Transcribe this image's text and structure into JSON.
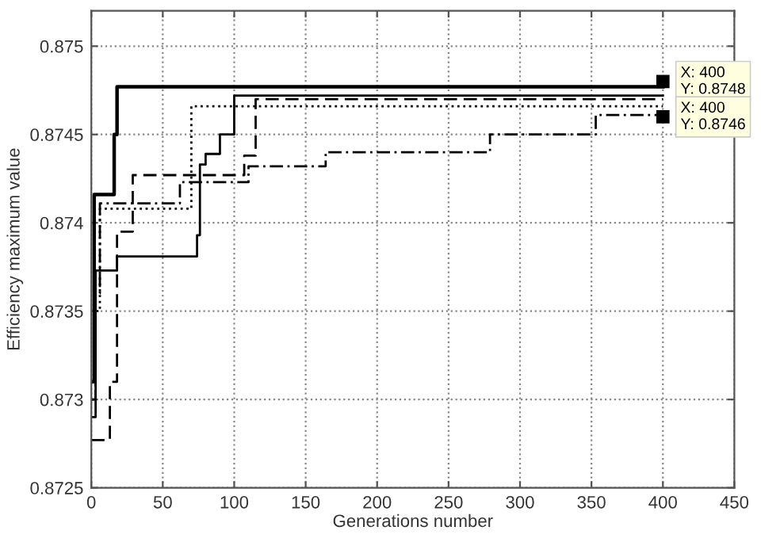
{
  "chart_data": {
    "type": "step",
    "xlabel": "Generations number",
    "ylabel": "Efficiency maximum value",
    "xlim": [
      0,
      450
    ],
    "ylim": [
      0.8725,
      0.8752
    ],
    "xticks": [
      0,
      50,
      100,
      150,
      200,
      250,
      300,
      350,
      400,
      450
    ],
    "yticks": [
      0.8725,
      0.873,
      0.8735,
      0.874,
      0.8745,
      0.875
    ],
    "grid": true,
    "marker": "none",
    "series": [
      {
        "color": "#000000",
        "line_style": "solid",
        "x": [
          0,
          2,
          13,
          16,
          18,
          400
        ],
        "values": [
          0.8731,
          0.87416,
          0.87416,
          0.8745,
          0.87477,
          0.87477
        ]
      },
      {
        "color": "#000000",
        "line_style": "solid",
        "x": [
          0,
          3,
          18,
          72,
          74,
          76,
          80,
          90,
          100,
          400
        ],
        "values": [
          0.8729,
          0.87373,
          0.87381,
          0.87381,
          0.87393,
          0.87433,
          0.87439,
          0.8745,
          0.87472,
          0.87472
        ]
      },
      {
        "color": "#000000",
        "line_style": "dashed",
        "x": [
          0,
          10,
          13,
          18,
          25,
          29,
          107,
          115,
          400
        ],
        "values": [
          0.87277,
          0.87277,
          0.8731,
          0.87395,
          0.87395,
          0.87427,
          0.87438,
          0.8747,
          0.8747
        ]
      },
      {
        "color": "#000000",
        "line_style": "dotted",
        "x": [
          0,
          3,
          6,
          70,
          400
        ],
        "values": [
          0.873,
          0.8735,
          0.87408,
          0.87466,
          0.87466
        ]
      },
      {
        "color": "#000000",
        "line_style": "dashdot",
        "x": [
          0,
          3,
          6,
          62,
          110,
          164,
          279,
          353,
          400
        ],
        "values": [
          0.873,
          0.8736,
          0.87411,
          0.87423,
          0.87432,
          0.8744,
          0.8745,
          0.87461,
          0.87461
        ]
      }
    ],
    "annotations": [
      {
        "text": "X: 400\nY: 0.8748",
        "x": 400,
        "y": 0.8748
      },
      {
        "text": "X: 400\nY: 0.8746",
        "x": 400,
        "y": 0.8746
      }
    ]
  }
}
